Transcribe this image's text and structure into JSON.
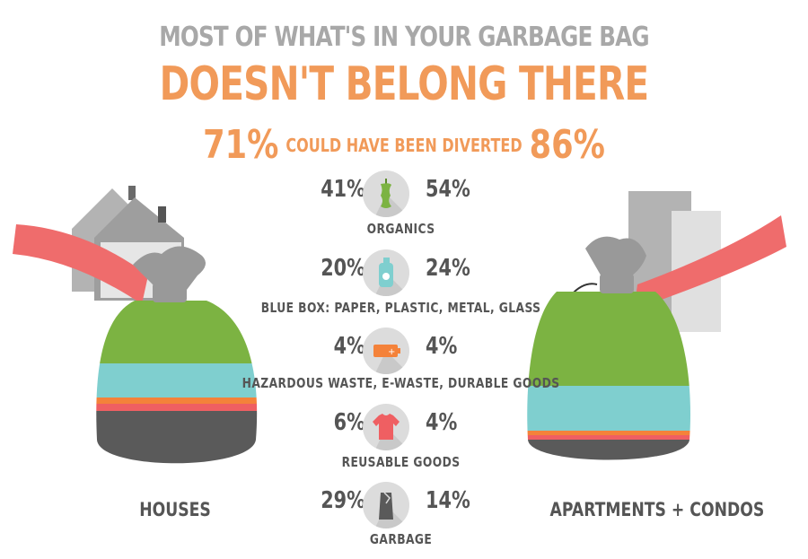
{
  "header": {
    "line1": "MOST OF WHAT'S IN YOUR GARBAGE BAG",
    "line2": "DOESN'T BELONG THERE"
  },
  "diverted": {
    "houses_pct": "71%",
    "label": "COULD HAVE BEEN DIVERTED",
    "apartments_pct": "86%"
  },
  "categories": [
    {
      "name": "ORGANICS",
      "houses": "41%",
      "apartments": "54%",
      "icon": "apple-core-icon"
    },
    {
      "name": "BLUE BOX: PAPER, PLASTIC, METAL, GLASS",
      "houses": "20%",
      "apartments": "24%",
      "icon": "bottle-icon"
    },
    {
      "name": "HAZARDOUS WASTE, E-WASTE, DURABLE GOODS",
      "houses": "4%",
      "apartments": "4%",
      "icon": "battery-icon"
    },
    {
      "name": "REUSABLE GOODS",
      "houses": "6%",
      "apartments": "4%",
      "icon": "shirt-icon"
    },
    {
      "name": "GARBAGE",
      "houses": "29%",
      "apartments": "14%",
      "icon": "trash-bag-icon"
    }
  ],
  "groups": {
    "houses": "HOUSES",
    "apartments": "APARTMENTS + CONDOS"
  },
  "colors": {
    "title_gray": "#a8a8a8",
    "accent_orange": "#f19a59",
    "organics_green": "#7cb342",
    "bluebox_teal": "#7fcfcf",
    "hazardous_orange": "#f4823a",
    "reusable_red": "#ef5f62",
    "garbage_gray": "#5a5a5a",
    "arm_red": "#ef6c6c"
  }
}
